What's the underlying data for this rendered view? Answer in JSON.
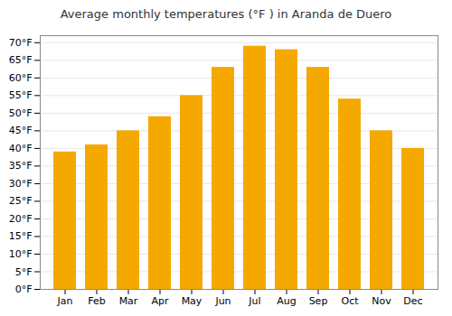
{
  "chart_data": {
    "type": "bar",
    "title": "Average monthly temperatures (°F ) in Aranda de Duero",
    "categories": [
      "Jan",
      "Feb",
      "Mar",
      "Apr",
      "May",
      "Jun",
      "Jul",
      "Aug",
      "Sep",
      "Oct",
      "Nov",
      "Dec"
    ],
    "values": [
      39,
      41,
      45,
      49,
      55,
      63,
      69,
      68,
      63,
      54,
      45,
      40
    ],
    "color": "#F5A800",
    "ylim": [
      0,
      72
    ],
    "yticks": [
      {
        "value": 0,
        "label": "0°F"
      },
      {
        "value": 5,
        "label": "5°F"
      },
      {
        "value": 10,
        "label": "10°F"
      },
      {
        "value": 15,
        "label": "15°F"
      },
      {
        "value": 20,
        "label": "20°F"
      },
      {
        "value": 25,
        "label": "25°F"
      },
      {
        "value": 30,
        "label": "30°F"
      },
      {
        "value": 35,
        "label": "35°F"
      },
      {
        "value": 40,
        "label": "40°F"
      },
      {
        "value": 45,
        "label": "45°F"
      },
      {
        "value": 50,
        "label": "50°F"
      },
      {
        "value": 55,
        "label": "55°F"
      },
      {
        "value": 60,
        "label": "60°F"
      },
      {
        "value": 65,
        "label": "65°F"
      },
      {
        "value": 70,
        "label": "70°F"
      }
    ],
    "grid": true
  }
}
